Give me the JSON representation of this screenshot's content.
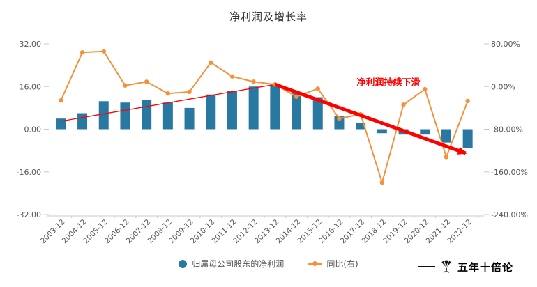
{
  "title": "净利润及增长率",
  "chart_data": {
    "type": "combo",
    "title": "净利润及增长率",
    "categories": [
      "2003-12",
      "2004-12",
      "2005-12",
      "2006-12",
      "2007-12",
      "2008-12",
      "2009-12",
      "2010-12",
      "2011-12",
      "2012-12",
      "2013-12",
      "2014-12",
      "2015-12",
      "2016-12",
      "2017-12",
      "2018-12",
      "2019-12",
      "2020-12",
      "2021-12",
      "2022-12"
    ],
    "series": [
      {
        "name": "归属母公司股东的净利润",
        "type": "bar",
        "axis": "left",
        "color": "#2878a2",
        "values": [
          4,
          6,
          10.5,
          10,
          11,
          10,
          8,
          13,
          14.5,
          16,
          16.5,
          14,
          12,
          5,
          2.5,
          -1.5,
          -2,
          -2,
          -5,
          -7
        ]
      },
      {
        "name": "同比(右)",
        "type": "line",
        "axis": "right",
        "color": "#f5913d",
        "values": [
          -26,
          64,
          66,
          2,
          9,
          -13,
          -10,
          45,
          19,
          9,
          4,
          -19,
          -4,
          -60,
          -52,
          -180,
          -34,
          -5,
          -132,
          -27
        ]
      }
    ],
    "left_axis": {
      "ticks": [
        32,
        16,
        0,
        -16,
        -32
      ],
      "labels": [
        "32.00",
        "16.00",
        "0.00",
        "-16.00",
        "-32.00"
      ]
    },
    "right_axis": {
      "ticks": [
        80,
        0,
        -80,
        -160,
        -240
      ],
      "labels": [
        "80.00%",
        "0.00%",
        "-80.00%",
        "-160.00%",
        "-240.00%"
      ]
    },
    "annotation": {
      "text": "净利润持续下滑",
      "color": "#ff0000",
      "pos": {
        "i": 15.3,
        "v": 16.5
      },
      "trend_thin": [
        {
          "i": 0,
          "v": 3
        },
        {
          "i": 10,
          "v": 16.8
        }
      ],
      "trend_thick": [
        {
          "i": 10,
          "v": 16.8
        },
        {
          "i": 18.9,
          "v": -9
        }
      ]
    },
    "legend": [
      {
        "label": "归属母公司股东的净利润",
        "type": "bar",
        "color": "#2878a2"
      },
      {
        "label": "同比(右)",
        "type": "line",
        "color": "#f5913d"
      }
    ],
    "legend_position": "bottom",
    "grid": false
  },
  "watermark": {
    "text": "五年十倍论"
  }
}
